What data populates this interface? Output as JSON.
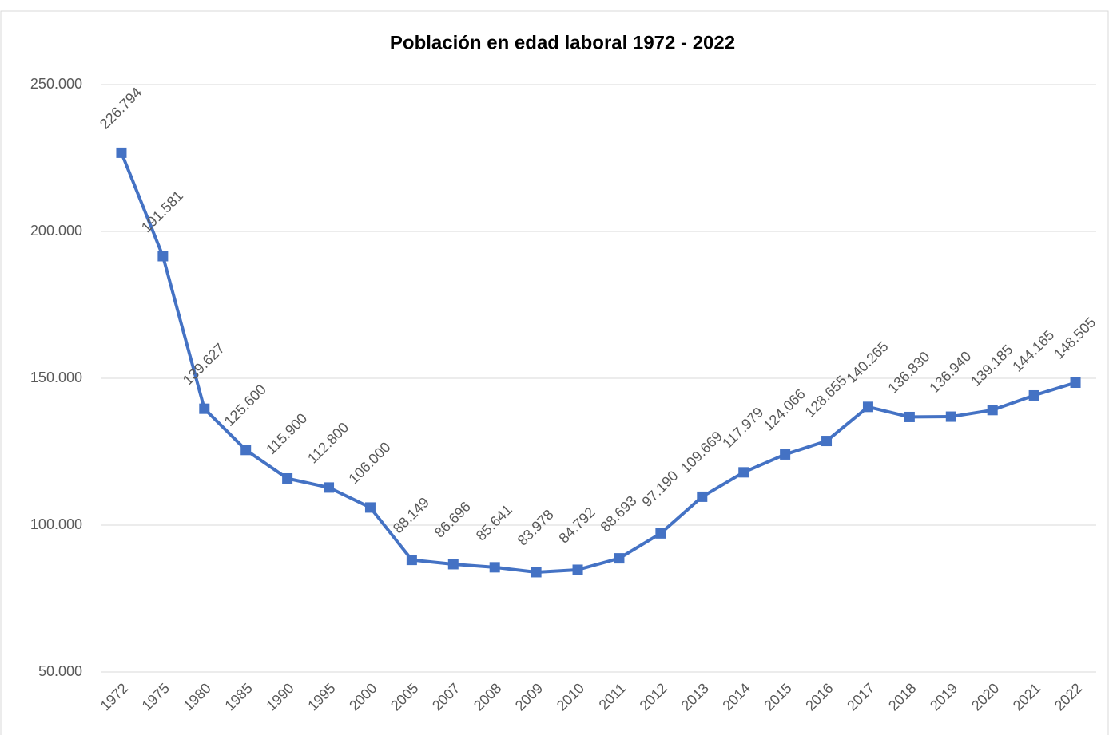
{
  "chart_data": {
    "type": "line",
    "title": "Población en edad laboral 1972 - 2022",
    "categories": [
      "1972",
      "1975",
      "1980",
      "1985",
      "1990",
      "1995",
      "2000",
      "2005",
      "2007",
      "2008",
      "2009",
      "2010",
      "2011",
      "2012",
      "2013",
      "2014",
      "2015",
      "2016",
      "2017",
      "2018",
      "2019",
      "2020",
      "2021",
      "2022"
    ],
    "series": [
      {
        "color": "#4472c4",
        "values": [
          226794,
          191581,
          139627,
          125600,
          115900,
          112800,
          106000,
          88149,
          86696,
          85641,
          83978,
          84792,
          88693,
          97190,
          109669,
          117979,
          124066,
          128655,
          140265,
          136830,
          136940,
          139185,
          144165,
          148505
        ],
        "value_labels": [
          "226.794",
          "191.581",
          "139.627",
          "125.600",
          "115.900",
          "112.800",
          "106.000",
          "88.149",
          "86.696",
          "85.641",
          "83.978",
          "84.792",
          "88.693",
          "97.190",
          "109.669",
          "117.979",
          "124.066",
          "128.655",
          "140.265",
          "136.830",
          "136.940",
          "139.185",
          "144.165",
          "148.505"
        ]
      }
    ],
    "ylim": [
      50000,
      250000
    ],
    "yticks": [
      {
        "value": 50000,
        "label": "50.000"
      },
      {
        "value": 100000,
        "label": "100.000"
      },
      {
        "value": 150000,
        "label": "150.000"
      },
      {
        "value": 200000,
        "label": "200.000"
      },
      {
        "value": 250000,
        "label": "250.000"
      }
    ],
    "grid": true
  }
}
